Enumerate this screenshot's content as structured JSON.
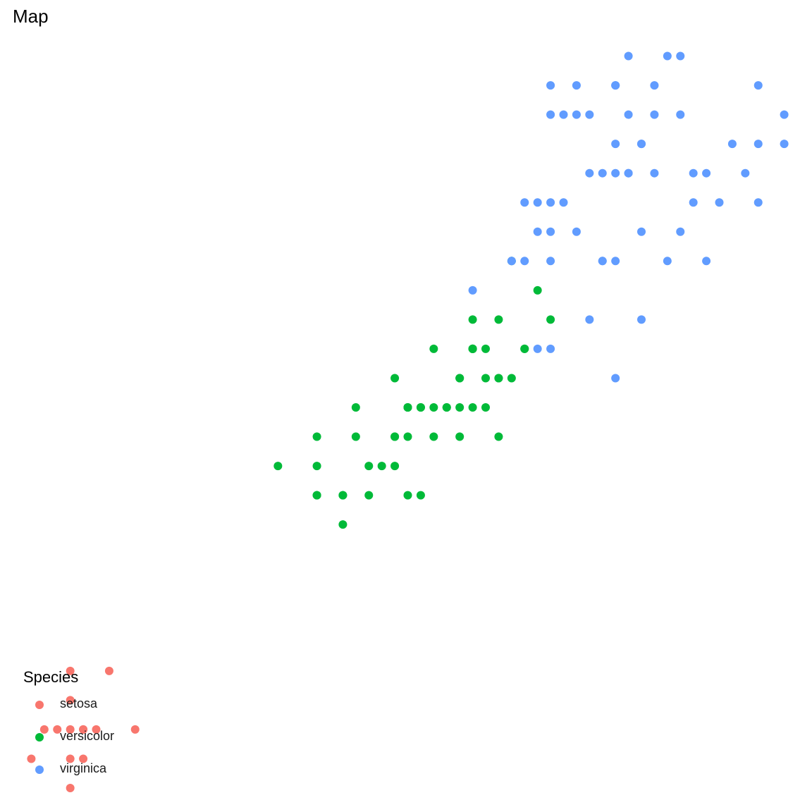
{
  "chart_data": {
    "type": "scatter",
    "title": "Map",
    "xlabel": "",
    "ylabel": "",
    "xlim": [
      1.0,
      7.0
    ],
    "ylim": [
      0.0,
      2.6
    ],
    "grid": false,
    "legend": {
      "title": "Species",
      "placement": "bottom-left"
    },
    "series": [
      {
        "name": "setosa",
        "color": "#F8766D",
        "points": [
          [
            1.4,
            0.2
          ],
          [
            1.4,
            0.1
          ],
          [
            1.3,
            0.2
          ],
          [
            1.5,
            0.2
          ],
          [
            1.4,
            0.4
          ],
          [
            1.7,
            0.4
          ],
          [
            1.4,
            0.3
          ],
          [
            1.5,
            0.1
          ],
          [
            1.5,
            0.2
          ],
          [
            1.6,
            0.2
          ],
          [
            1.1,
            0.1
          ],
          [
            1.2,
            0.2
          ],
          [
            1.9,
            0.2
          ],
          [
            1.4,
            0.0
          ]
        ]
      },
      {
        "name": "versicolor",
        "color": "#00BA38",
        "points": [
          [
            4.7,
            1.4
          ],
          [
            4.5,
            1.5
          ],
          [
            4.9,
            1.5
          ],
          [
            4.0,
            1.3
          ],
          [
            4.6,
            1.5
          ],
          [
            4.5,
            1.3
          ],
          [
            4.7,
            1.6
          ],
          [
            3.3,
            1.0
          ],
          [
            4.6,
            1.3
          ],
          [
            3.9,
            1.4
          ],
          [
            3.5,
            1.0
          ],
          [
            4.2,
            1.5
          ],
          [
            4.0,
            1.0
          ],
          [
            4.7,
            1.4
          ],
          [
            3.6,
            1.3
          ],
          [
            4.4,
            1.4
          ],
          [
            4.5,
            1.5
          ],
          [
            4.1,
            1.0
          ],
          [
            4.5,
            1.5
          ],
          [
            3.9,
            1.1
          ],
          [
            4.8,
            1.8
          ],
          [
            4.0,
            1.3
          ],
          [
            4.9,
            1.5
          ],
          [
            4.7,
            1.2
          ],
          [
            4.3,
            1.3
          ],
          [
            4.4,
            1.4
          ],
          [
            4.8,
            1.4
          ],
          [
            5.0,
            1.7
          ],
          [
            4.5,
            1.5
          ],
          [
            3.5,
            1.0
          ],
          [
            3.8,
            1.1
          ],
          [
            3.7,
            1.0
          ],
          [
            3.9,
            1.2
          ],
          [
            5.1,
            1.6
          ],
          [
            4.5,
            1.5
          ],
          [
            4.5,
            1.6
          ],
          [
            4.4,
            1.3
          ],
          [
            4.1,
            1.3
          ],
          [
            4.0,
            1.3
          ],
          [
            4.4,
            1.2
          ],
          [
            4.6,
            1.4
          ],
          [
            4.0,
            1.2
          ],
          [
            3.3,
            1.0
          ],
          [
            4.2,
            1.3
          ],
          [
            4.2,
            1.2
          ],
          [
            4.3,
            1.3
          ],
          [
            3.0,
            1.1
          ],
          [
            4.1,
            1.3
          ],
          [
            3.3,
            1.2
          ],
          [
            3.9,
            1.2
          ],
          [
            3.5,
            0.9
          ],
          [
            3.7,
            1.1
          ],
          [
            3.3,
            1.1
          ],
          [
            3.6,
            1.2
          ]
        ]
      },
      {
        "name": "virginica",
        "color": "#619CFF",
        "points": [
          [
            6.0,
            2.5
          ],
          [
            5.1,
            1.9
          ],
          [
            5.9,
            2.1
          ],
          [
            5.6,
            1.8
          ],
          [
            5.8,
            2.2
          ],
          [
            6.6,
            2.1
          ],
          [
            4.5,
            1.7
          ],
          [
            6.3,
            1.8
          ],
          [
            6.1,
            2.5
          ],
          [
            5.1,
            2.0
          ],
          [
            5.3,
            1.9
          ],
          [
            5.5,
            2.1
          ],
          [
            5.0,
            2.0
          ],
          [
            5.1,
            2.4
          ],
          [
            5.3,
            2.3
          ],
          [
            5.5,
            1.8
          ],
          [
            6.7,
            2.2
          ],
          [
            6.9,
            2.3
          ],
          [
            5.0,
            1.5
          ],
          [
            5.7,
            2.3
          ],
          [
            4.9,
            2.0
          ],
          [
            6.7,
            2.0
          ],
          [
            4.9,
            1.8
          ],
          [
            5.7,
            2.1
          ],
          [
            6.0,
            1.8
          ],
          [
            4.8,
            1.8
          ],
          [
            5.6,
            2.1
          ],
          [
            5.8,
            1.6
          ],
          [
            6.1,
            1.9
          ],
          [
            6.4,
            2.0
          ],
          [
            5.6,
            2.2
          ],
          [
            5.1,
            1.5
          ],
          [
            5.6,
            1.4
          ],
          [
            6.1,
            2.3
          ],
          [
            5.6,
            2.4
          ],
          [
            5.5,
            1.8
          ],
          [
            4.8,
            1.8
          ],
          [
            5.4,
            2.1
          ],
          [
            5.6,
            2.4
          ],
          [
            5.1,
            2.3
          ],
          [
            5.9,
            2.3
          ],
          [
            5.7,
            2.5
          ],
          [
            5.2,
            2.3
          ],
          [
            5.0,
            1.9
          ],
          [
            5.2,
            2.0
          ],
          [
            5.4,
            2.3
          ],
          [
            5.1,
            1.8
          ],
          [
            5.3,
            2.4
          ],
          [
            6.3,
            2.1
          ],
          [
            6.5,
            2.2
          ],
          [
            6.2,
            2.0
          ],
          [
            5.4,
            1.6
          ],
          [
            5.8,
            2.2
          ],
          [
            5.7,
            2.1
          ],
          [
            5.8,
            1.9
          ],
          [
            6.9,
            2.2
          ],
          [
            6.7,
            2.4
          ],
          [
            6.2,
            2.1
          ],
          [
            5.9,
            2.4
          ]
        ]
      }
    ]
  }
}
